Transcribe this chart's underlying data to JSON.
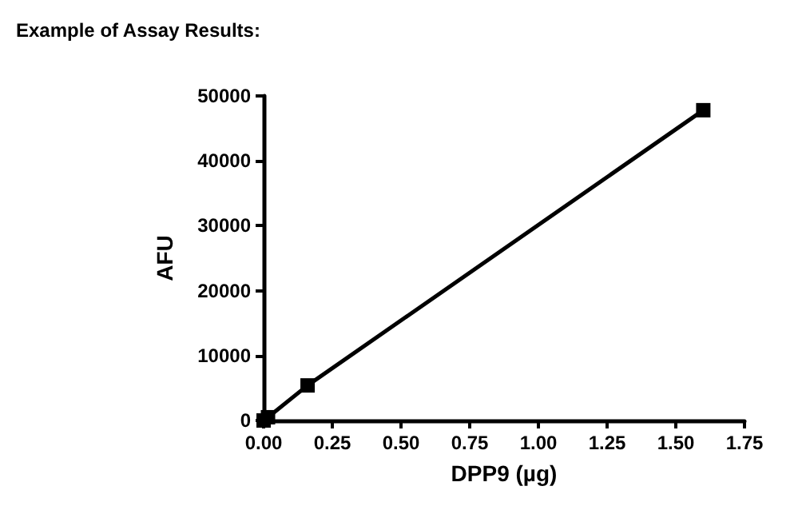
{
  "chart_data": {
    "type": "line",
    "title": "Example of Assay Results:",
    "xlabel": "DPP9 (µg)",
    "ylabel": "AFU",
    "x": [
      0,
      0.016,
      0.16,
      1.6
    ],
    "series": [
      {
        "color": "#000000",
        "values": [
          0,
          500,
          5400,
          47800
        ]
      }
    ],
    "xlim": [
      0,
      1.75
    ],
    "xticks": [
      {
        "value": 0,
        "label": "0.00"
      },
      0.25,
      {
        "value": 0.5,
        "label": "0.50"
      },
      0.75,
      {
        "value": 1,
        "label": "1.00"
      },
      1.25,
      {
        "value": 1.5,
        "label": "1.50"
      },
      1.75
    ],
    "ylim": [
      0,
      50000
    ],
    "yticks": [
      0,
      10000,
      20000,
      30000,
      40000,
      50000
    ],
    "grid": false,
    "marker": "square",
    "line_style": "solid"
  }
}
